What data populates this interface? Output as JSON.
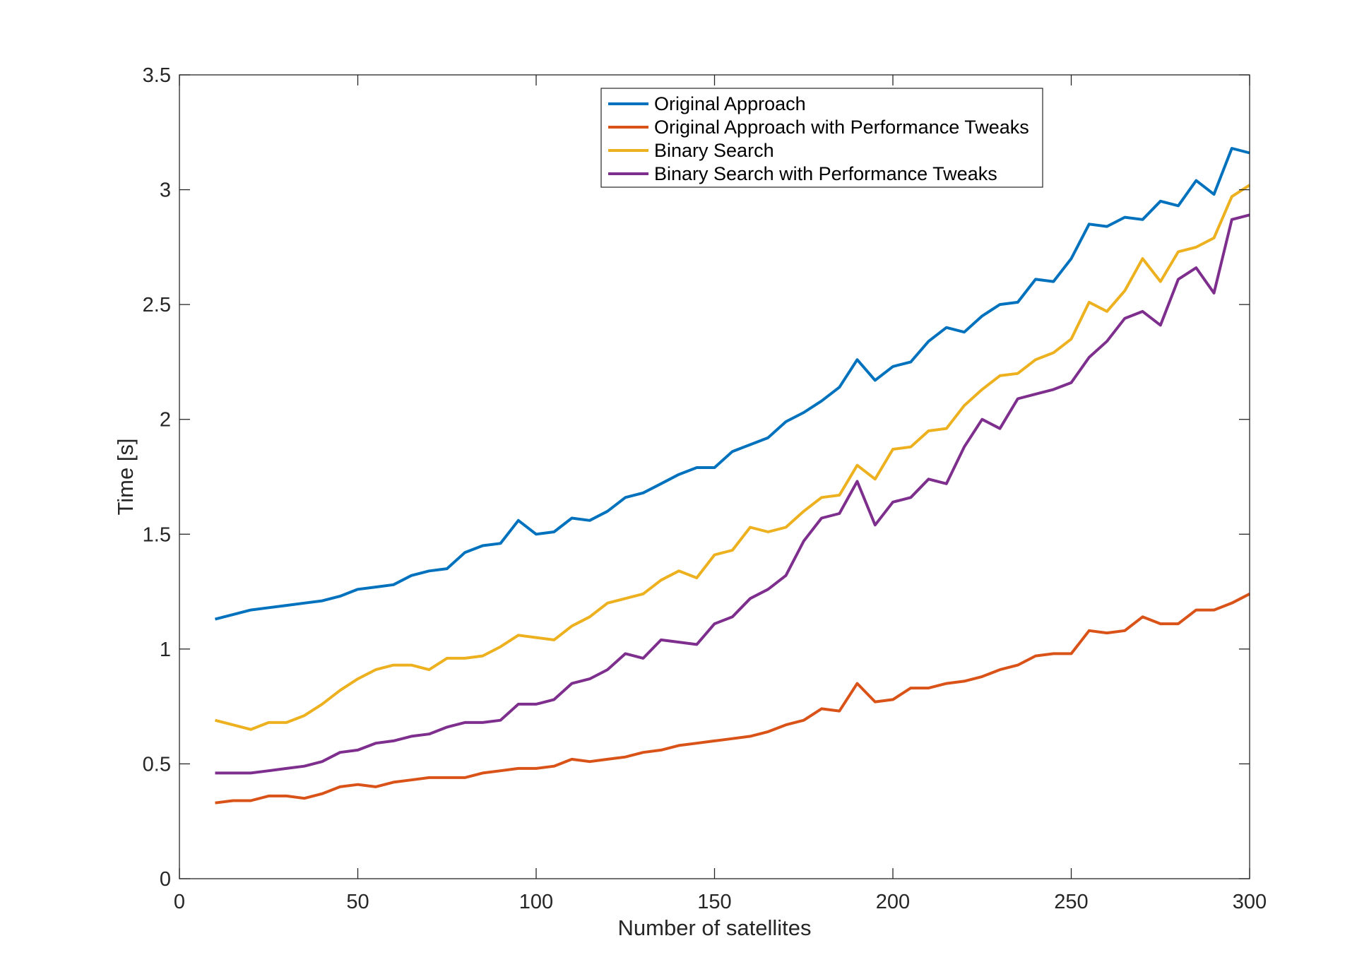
{
  "chart_data": {
    "type": "line",
    "title": "",
    "xlabel": "Number of satellites",
    "ylabel": "Time [s]",
    "xlim": [
      0,
      300
    ],
    "ylim": [
      0,
      3.5
    ],
    "xticks": [
      0,
      50,
      100,
      150,
      200,
      250,
      300
    ],
    "yticks": [
      0,
      0.5,
      1,
      1.5,
      2,
      2.5,
      3,
      3.5
    ],
    "xtick_labels": [
      "0",
      "50",
      "100",
      "150",
      "200",
      "250",
      "300"
    ],
    "ytick_labels": [
      "0",
      "0.5",
      "1",
      "1.5",
      "2",
      "2.5",
      "3",
      "3.5"
    ],
    "grid": false,
    "legend_position": "top-center",
    "x": [
      10,
      15,
      20,
      25,
      30,
      35,
      40,
      45,
      50,
      55,
      60,
      65,
      70,
      75,
      80,
      85,
      90,
      95,
      100,
      105,
      110,
      115,
      120,
      125,
      130,
      135,
      140,
      145,
      150,
      155,
      160,
      165,
      170,
      175,
      180,
      185,
      190,
      195,
      200,
      205,
      210,
      215,
      220,
      225,
      230,
      235,
      240,
      245,
      250,
      255,
      260,
      265,
      270,
      275,
      280,
      285,
      290,
      295,
      300
    ],
    "series": [
      {
        "name": "Original Approach",
        "color": "#0072BD",
        "values": [
          1.13,
          1.15,
          1.17,
          1.18,
          1.19,
          1.2,
          1.21,
          1.23,
          1.26,
          1.27,
          1.28,
          1.32,
          1.34,
          1.35,
          1.42,
          1.45,
          1.46,
          1.56,
          1.5,
          1.51,
          1.57,
          1.56,
          1.6,
          1.66,
          1.68,
          1.72,
          1.76,
          1.79,
          1.79,
          1.86,
          1.89,
          1.92,
          1.99,
          2.03,
          2.08,
          2.14,
          2.26,
          2.17,
          2.23,
          2.25,
          2.34,
          2.4,
          2.38,
          2.45,
          2.5,
          2.51,
          2.61,
          2.6,
          2.7,
          2.85,
          2.84,
          2.88,
          2.87,
          2.95,
          2.93,
          3.04,
          2.98,
          3.18,
          3.16
        ]
      },
      {
        "name": "Original Approach with Performance Tweaks",
        "color": "#D95319",
        "values": [
          0.33,
          0.34,
          0.34,
          0.36,
          0.36,
          0.35,
          0.37,
          0.4,
          0.41,
          0.4,
          0.42,
          0.43,
          0.44,
          0.44,
          0.44,
          0.46,
          0.47,
          0.48,
          0.48,
          0.49,
          0.52,
          0.51,
          0.52,
          0.53,
          0.55,
          0.56,
          0.58,
          0.59,
          0.6,
          0.61,
          0.62,
          0.64,
          0.67,
          0.69,
          0.74,
          0.73,
          0.85,
          0.77,
          0.78,
          0.83,
          0.83,
          0.85,
          0.86,
          0.88,
          0.91,
          0.93,
          0.97,
          0.98,
          0.98,
          1.08,
          1.07,
          1.08,
          1.14,
          1.11,
          1.11,
          1.17,
          1.17,
          1.2,
          1.24
        ]
      },
      {
        "name": "Binary Search",
        "color": "#EDB120",
        "values": [
          0.69,
          0.67,
          0.65,
          0.68,
          0.68,
          0.71,
          0.76,
          0.82,
          0.87,
          0.91,
          0.93,
          0.93,
          0.91,
          0.96,
          0.96,
          0.97,
          1.01,
          1.06,
          1.05,
          1.04,
          1.1,
          1.14,
          1.2,
          1.22,
          1.24,
          1.3,
          1.34,
          1.31,
          1.41,
          1.43,
          1.53,
          1.51,
          1.53,
          1.6,
          1.66,
          1.67,
          1.8,
          1.74,
          1.87,
          1.88,
          1.95,
          1.96,
          2.06,
          2.13,
          2.19,
          2.2,
          2.26,
          2.29,
          2.35,
          2.51,
          2.47,
          2.56,
          2.7,
          2.6,
          2.73,
          2.75,
          2.79,
          2.97,
          3.02
        ]
      },
      {
        "name": "Binary Search with Performance Tweaks",
        "color": "#7E2F8E",
        "values": [
          0.46,
          0.46,
          0.46,
          0.47,
          0.48,
          0.49,
          0.51,
          0.55,
          0.56,
          0.59,
          0.6,
          0.62,
          0.63,
          0.66,
          0.68,
          0.68,
          0.69,
          0.76,
          0.76,
          0.78,
          0.85,
          0.87,
          0.91,
          0.98,
          0.96,
          1.04,
          1.03,
          1.02,
          1.11,
          1.14,
          1.22,
          1.26,
          1.32,
          1.47,
          1.57,
          1.59,
          1.73,
          1.54,
          1.64,
          1.66,
          1.74,
          1.72,
          1.88,
          2.0,
          1.96,
          2.09,
          2.11,
          2.13,
          2.16,
          2.27,
          2.34,
          2.44,
          2.47,
          2.41,
          2.61,
          2.66,
          2.55,
          2.87,
          2.89
        ]
      }
    ]
  }
}
